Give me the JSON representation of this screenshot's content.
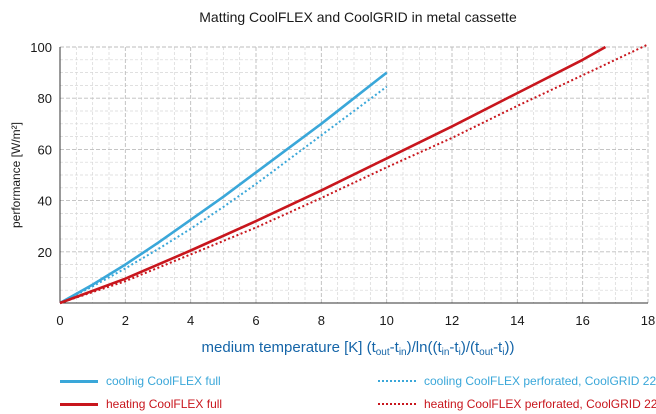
{
  "chart_data": {
    "type": "line",
    "title": "Matting CoolFLEX and CoolGRID in metal cassette",
    "ylabel": "performance [W/m²]",
    "xlabel_parts": {
      "prefix": "medium temperature [K] (t",
      "sub_out": "out",
      "dash1": "-t",
      "sub_in": "in",
      "mid": ")/ln((t",
      "sub_in2": "in",
      "dash2": "-t",
      "sub_i": "i",
      "mid2": ")/(t",
      "sub_out2": "out",
      "dash3": "-t",
      "sub_i2": "i",
      "end": "))"
    },
    "xlim": [
      0,
      18
    ],
    "ylim": [
      0,
      100
    ],
    "x_ticks": [
      "0",
      "2",
      "4",
      "6",
      "8",
      "10",
      "12",
      "14",
      "16",
      "18"
    ],
    "y_ticks": [
      "20",
      "40",
      "60",
      "80",
      "100"
    ],
    "grid": true,
    "legend_position": "bottom",
    "series": [
      {
        "name": "coolnig CoolFLEX full",
        "color": "#3aa7d9",
        "style": "solid",
        "x": [
          0,
          1,
          2,
          3,
          4,
          5,
          6,
          7,
          8,
          9,
          10
        ],
        "y": [
          0,
          7.2,
          15.0,
          23.5,
          32.5,
          41.5,
          51.0,
          60.5,
          70.0,
          80.0,
          90.0
        ]
      },
      {
        "name": "cooling CoolFLEX perforated, CoolGRID 22",
        "color": "#3aa7d9",
        "style": "dotted",
        "x": [
          0,
          1,
          2,
          3,
          4,
          5,
          6,
          7,
          8,
          9,
          10
        ],
        "y": [
          0,
          6.5,
          13.5,
          21.0,
          29.0,
          37.5,
          46.5,
          56.0,
          65.5,
          75.0,
          84.5
        ]
      },
      {
        "name": "heating CoolFLEX full",
        "color": "#c8161d",
        "style": "solid",
        "x": [
          0,
          2,
          4,
          6,
          8,
          10,
          12,
          14,
          16,
          16.7
        ],
        "y": [
          0,
          9.5,
          20.5,
          32.0,
          44.0,
          56.5,
          69.0,
          82.0,
          95.0,
          100
        ]
      },
      {
        "name": "heating CoolFLEX perforated, CoolGRID 22",
        "color": "#c8161d",
        "style": "dotted",
        "x": [
          0,
          2,
          4,
          6,
          8,
          10,
          12,
          14,
          16,
          18
        ],
        "y": [
          0,
          8.5,
          19.0,
          29.5,
          41.0,
          53.0,
          64.5,
          77.0,
          89.0,
          101.0
        ]
      }
    ]
  }
}
